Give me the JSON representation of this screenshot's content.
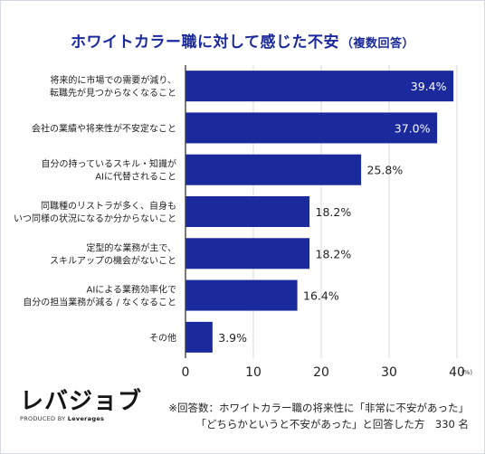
{
  "title": "ホワイトカラー職に対して感じた不安",
  "title_suffix": "（複数回答）",
  "chart_data": {
    "type": "bar",
    "orientation": "horizontal",
    "categories": [
      [
        "将来的に市場での需要が減り、",
        "転職先が見つからなくなること"
      ],
      [
        "会社の業績や将来性が不安定なこと"
      ],
      [
        "自分の持っているスキル・知識が",
        "AIに代替されること"
      ],
      [
        "同職種のリストラが多く、自身も",
        "いつ同様の状況になるか分からないこと"
      ],
      [
        "定型的な業務が主で、",
        "スキルアップの機会がないこと"
      ],
      [
        "AIによる業務効率化で",
        "自分の担当業務が減る / なくなること"
      ],
      [
        "その他"
      ]
    ],
    "values": [
      39.4,
      37.0,
      25.8,
      18.2,
      18.2,
      16.4,
      3.9
    ],
    "value_labels": [
      "39.4%",
      "37.0%",
      "25.8%",
      "18.2%",
      "18.2%",
      "16.4%",
      "3.9%"
    ],
    "xlim": [
      0,
      40
    ],
    "xticks": [
      "0",
      "10",
      "20",
      "30",
      "40"
    ],
    "x_unit": "(%)",
    "bar_color": "#1a2a9c",
    "label_inside_bars": [
      true,
      true,
      false,
      false,
      false,
      false,
      false
    ]
  },
  "brand": {
    "logo": "レバジョブ",
    "produced_by": "PRODUCED BY",
    "company": "Leverages"
  },
  "note": {
    "line1": "※回答数：ホワイトカラー職の将来性に「非常に不安があった」",
    "line2": "「どちらかというと不安があった」と回答した方　330 名"
  }
}
